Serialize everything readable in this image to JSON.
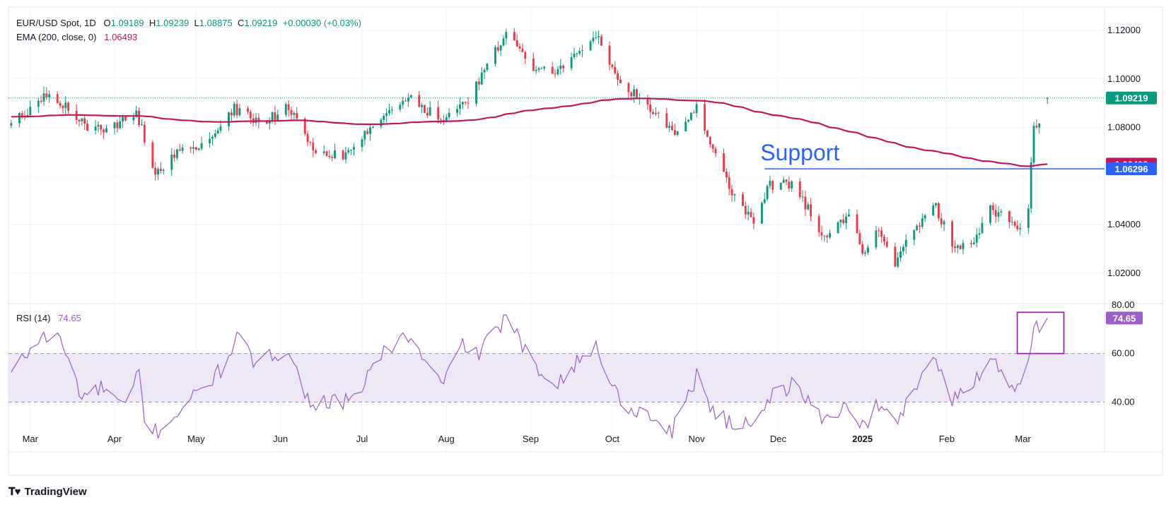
{
  "header": {
    "symbol": "EUR/USD Spot, 1D",
    "o_label": "O",
    "o_value": "1.09189",
    "h_label": "H",
    "h_value": "1.09239",
    "l_label": "L",
    "l_value": "1.08875",
    "c_label": "C",
    "c_value": "1.09219",
    "change": "+0.00030 (+0.03%)",
    "ema_label": "EMA (200, close, 0)",
    "ema_value": "1.06493",
    "rsi_label": "RSI (14)",
    "rsi_value": "74.65"
  },
  "brand": {
    "name": "TradingView",
    "logo_icon": "tradingview-logo-icon"
  },
  "colors": {
    "up": "#089981",
    "down": "#f23645",
    "ema": "#c2185b",
    "support": "#2962ff",
    "rsi": "#9c5fc7",
    "rsi_band": "#ede7f6",
    "grid": "#f0f3fa"
  },
  "chart_data": [
    {
      "type": "candlestick",
      "title": "EUR/USD Spot, 1D",
      "x_axis_labels": [
        "Mar",
        "Apr",
        "May",
        "Jun",
        "Jul",
        "Aug",
        "Sep",
        "Oct",
        "Nov",
        "Dec",
        "2025",
        "Feb",
        "Mar"
      ],
      "x_axis_label_dates": [
        "2024-03-01",
        "2024-04-01",
        "2024-05-01",
        "2024-06-01",
        "2024-07-01",
        "2024-08-01",
        "2024-09-01",
        "2024-10-01",
        "2024-11-01",
        "2024-12-01",
        "2025-01-01",
        "2025-02-01",
        "2025-03-01"
      ],
      "x_range": [
        "2024-02-22",
        "2025-03-31"
      ],
      "y_ticks": [
        "1.12000",
        "1.10000",
        "1.08000",
        "1.04000",
        "1.02000"
      ],
      "ylim": [
        1.008,
        1.1285
      ],
      "grid": true,
      "series": [
        {
          "name": "EUR/USD",
          "close_points": [
            [
              "2024-02-23",
              1.0822
            ],
            [
              "2024-03-08",
              1.0938
            ],
            [
              "2024-03-15",
              1.0885
            ],
            [
              "2024-03-22",
              1.0805
            ],
            [
              "2024-03-29",
              1.079
            ],
            [
              "2024-04-09",
              1.086
            ],
            [
              "2024-04-16",
              1.0622
            ],
            [
              "2024-04-25",
              1.07
            ],
            [
              "2024-05-03",
              1.072
            ],
            [
              "2024-05-15",
              1.088
            ],
            [
              "2024-05-24",
              1.0815
            ],
            [
              "2024-06-04",
              1.088
            ],
            [
              "2024-06-14",
              1.069
            ],
            [
              "2024-06-26",
              1.069
            ],
            [
              "2024-07-05",
              1.0815
            ],
            [
              "2024-07-17",
              1.093
            ],
            [
              "2024-07-31",
              1.0825
            ],
            [
              "2024-08-09",
              1.092
            ],
            [
              "2024-08-23",
              1.119
            ],
            [
              "2024-09-03",
              1.104
            ],
            [
              "2024-09-11",
              1.1025
            ],
            [
              "2024-09-25",
              1.119
            ],
            [
              "2024-10-04",
              1.097
            ],
            [
              "2024-10-11",
              1.0935
            ],
            [
              "2024-10-23",
              1.078
            ],
            [
              "2024-11-01",
              1.088
            ],
            [
              "2024-11-06",
              1.073
            ],
            [
              "2024-11-14",
              1.053
            ],
            [
              "2024-11-22",
              1.0415
            ],
            [
              "2024-11-28",
              1.0565
            ],
            [
              "2024-12-06",
              1.057
            ],
            [
              "2024-12-18",
              1.0355
            ],
            [
              "2024-12-27",
              1.0425
            ],
            [
              "2025-01-02",
              1.027
            ],
            [
              "2025-01-06",
              1.0385
            ],
            [
              "2025-01-13",
              1.0245
            ],
            [
              "2025-01-27",
              1.0495
            ],
            [
              "2025-02-03",
              1.032
            ],
            [
              "2025-02-10",
              1.0305
            ],
            [
              "2025-02-17",
              1.047
            ],
            [
              "2025-02-28",
              1.0375
            ],
            [
              "2025-03-03",
              1.048
            ],
            [
              "2025-03-05",
              1.079
            ],
            [
              "2025-03-07",
              1.0835
            ],
            [
              "2025-03-10",
              1.0922
            ]
          ]
        },
        {
          "name": "EMA (200, close, 0)",
          "last_value": 1.06493
        }
      ],
      "price_labels": [
        {
          "label": "1.09219",
          "value": 1.09219,
          "color": "#089981"
        },
        {
          "label": "1.06493",
          "value": 1.06493,
          "color": "#c2185b"
        },
        {
          "label": "1.06296",
          "value": 1.06296,
          "color": "#2962ff"
        }
      ],
      "annotations": [
        {
          "text": "Support",
          "type": "horizontal-line",
          "value": 1.06296,
          "start": "2024-11-26"
        }
      ]
    },
    {
      "type": "line",
      "title": "RSI (14)",
      "y_ticks": [
        "80.00",
        "60.00",
        "40.00"
      ],
      "ylim": [
        20,
        80
      ],
      "band": [
        40,
        60
      ],
      "last_value": 74.65,
      "series": [
        {
          "name": "RSI (14)",
          "points": [
            [
              "2024-02-23",
              52
            ],
            [
              "2024-03-05",
              67
            ],
            [
              "2024-03-12",
              66
            ],
            [
              "2024-03-20",
              42
            ],
            [
              "2024-03-28",
              46
            ],
            [
              "2024-04-05",
              37
            ],
            [
              "2024-04-10",
              53
            ],
            [
              "2024-04-12",
              31
            ],
            [
              "2024-04-17",
              28
            ],
            [
              "2024-04-30",
              42
            ],
            [
              "2024-05-10",
              53
            ],
            [
              "2024-05-16",
              67
            ],
            [
              "2024-05-23",
              55
            ],
            [
              "2024-06-04",
              63
            ],
            [
              "2024-06-10",
              42
            ],
            [
              "2024-06-14",
              40
            ],
            [
              "2024-06-28",
              40
            ],
            [
              "2024-07-05",
              56
            ],
            [
              "2024-07-17",
              68
            ],
            [
              "2024-07-25",
              55
            ],
            [
              "2024-07-31",
              46
            ],
            [
              "2024-08-05",
              64
            ],
            [
              "2024-08-13",
              60
            ],
            [
              "2024-08-23",
              75
            ],
            [
              "2024-09-03",
              53
            ],
            [
              "2024-09-11",
              49
            ],
            [
              "2024-09-25",
              63
            ],
            [
              "2024-10-04",
              40
            ],
            [
              "2024-10-18",
              32
            ],
            [
              "2024-10-23",
              28
            ],
            [
              "2024-10-31",
              48
            ],
            [
              "2024-11-01",
              53
            ],
            [
              "2024-11-06",
              38
            ],
            [
              "2024-11-14",
              30
            ],
            [
              "2024-11-22",
              33
            ],
            [
              "2024-11-28",
              42
            ],
            [
              "2024-12-06",
              47
            ],
            [
              "2024-12-18",
              33
            ],
            [
              "2024-12-27",
              39
            ],
            [
              "2025-01-02",
              29
            ],
            [
              "2025-01-06",
              39
            ],
            [
              "2025-01-13",
              31
            ],
            [
              "2025-01-27",
              60
            ],
            [
              "2025-02-03",
              40
            ],
            [
              "2025-02-10",
              47
            ],
            [
              "2025-02-17",
              59
            ],
            [
              "2025-02-26",
              45
            ],
            [
              "2025-03-03",
              59
            ],
            [
              "2025-03-05",
              71
            ],
            [
              "2025-03-07",
              72
            ],
            [
              "2025-03-10",
              74.65
            ]
          ]
        }
      ],
      "highlight_box": {
        "start": "2025-03-01",
        "end": "2025-03-15",
        "y_min": 60,
        "y_max": 77
      }
    }
  ]
}
